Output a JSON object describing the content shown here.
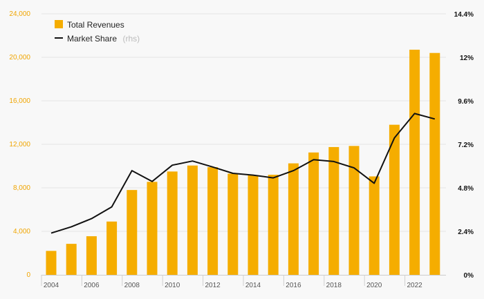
{
  "chart_data": {
    "type": "bar",
    "title": "",
    "x": [
      2004,
      2005,
      2006,
      2007,
      2008,
      2009,
      2010,
      2011,
      2012,
      2013,
      2014,
      2015,
      2016,
      2017,
      2018,
      2019,
      2020,
      2021,
      2022,
      2023
    ],
    "x_tick_labels": [
      "2004",
      "2006",
      "2008",
      "2010",
      "2012",
      "2014",
      "2016",
      "2018",
      "2020",
      "2022"
    ],
    "y_left": {
      "ylim": [
        0,
        24000
      ],
      "ticks": [
        0,
        4000,
        8000,
        12000,
        16000,
        20000,
        24000
      ],
      "tick_labels": [
        "0",
        "4,000",
        "8,000",
        "12,000",
        "16,000",
        "20,000",
        "24,000"
      ]
    },
    "y_right": {
      "ylim": [
        0,
        14.4
      ],
      "ticks": [
        0,
        2.4,
        4.8,
        7.2,
        9.6,
        12,
        14.4
      ],
      "tick_labels": [
        "0%",
        "2.4%",
        "4.8%",
        "7.2%",
        "9.6%",
        "12%",
        "14.4%"
      ]
    },
    "series": [
      {
        "name": "Total Revenues",
        "kind": "bar",
        "axis": "left",
        "color": "#f5ad00",
        "values": [
          2200,
          2850,
          3550,
          4900,
          7800,
          8550,
          9500,
          10050,
          9900,
          9300,
          9150,
          9200,
          10250,
          11250,
          11750,
          11850,
          9050,
          13800,
          20700,
          20400
        ]
      },
      {
        "name": "Market Share",
        "name_suffix": "(rhs)",
        "kind": "line",
        "axis": "right",
        "color": "#111111",
        "values": [
          2.3,
          2.65,
          3.1,
          3.75,
          5.75,
          5.15,
          6.05,
          6.28,
          5.95,
          5.6,
          5.5,
          5.35,
          5.75,
          6.35,
          6.25,
          5.9,
          5.05,
          7.55,
          8.9,
          8.6
        ]
      }
    ],
    "grid": true,
    "legend_position": "top-left"
  }
}
